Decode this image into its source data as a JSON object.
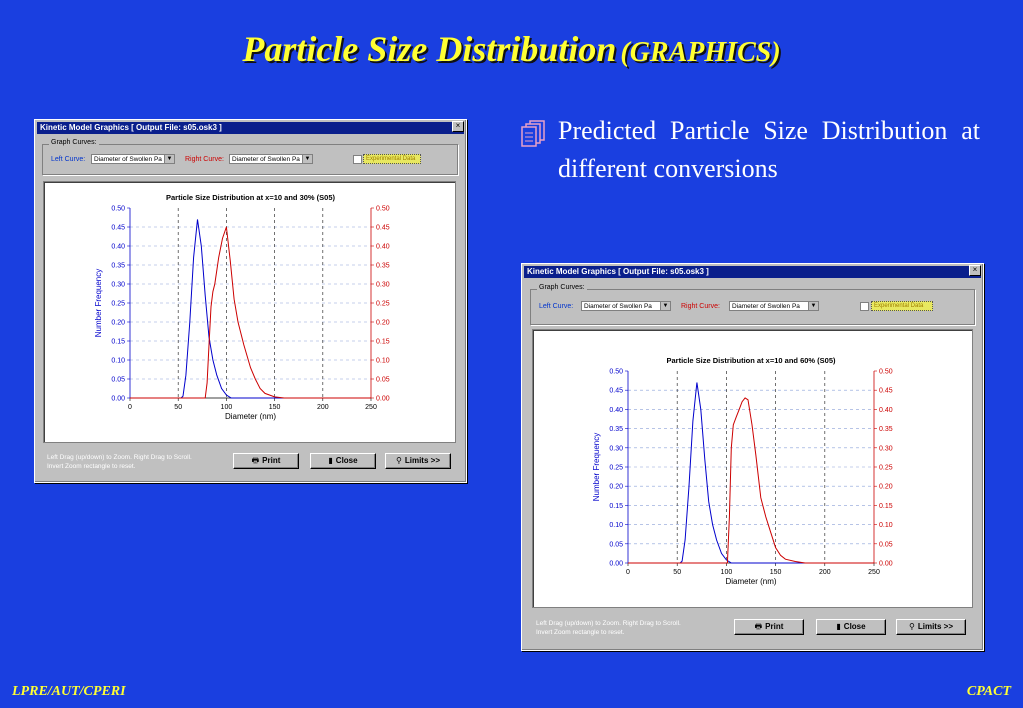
{
  "slide": {
    "title_main": "Particle Size Distribution",
    "title_sub": "(GRAPHICS)",
    "bullet": "Predicted Particle Size Distribution at different conversions",
    "footer_left": "LPRE/AUT/CPERI",
    "footer_right": "CPACT"
  },
  "windows": [
    {
      "title": "Kinetic Model Graphics [ Output File: s05.osk3 ]",
      "close_glyph": "×",
      "group_label": "Graph Curves:",
      "left_curve_label": "Left Curve:",
      "left_curve_value": "Diameter of Swollen Pa",
      "right_curve_label": "Right Curve:",
      "right_curve_value": "Diameter of Swollen Pa",
      "checkbox_label": "Experimental Data",
      "hint_line1": "Left Drag (up/down) to Zoom. Right Drag to Scroll.",
      "hint_line2": "Invert Zoom rectangle to reset.",
      "print_label": "Print",
      "close_label": "Close",
      "limits_label": "Limits >>"
    },
    {
      "title": "Kinetic Model Graphics [ Output File: s05.osk3 ]",
      "close_glyph": "×",
      "group_label": "Graph Curves:",
      "left_curve_label": "Left Curve:",
      "left_curve_value": "Diameter of Swollen Pa",
      "right_curve_label": "Right Curve:",
      "right_curve_value": "Diameter of Swollen Pa",
      "checkbox_label": "Experimental Data",
      "hint_line1": "Left Drag (up/down) to Zoom. Right Drag to Scroll.",
      "hint_line2": "Invert Zoom rectangle to reset.",
      "print_label": "Print",
      "close_label": "Close",
      "limits_label": "Limits >>"
    }
  ],
  "icons": {
    "bullet": "document-stack-icon",
    "print": "printer-icon",
    "close": "door-icon",
    "limits": "magnifier-icon"
  },
  "colors": {
    "background": "#1a3fe0",
    "title": "#ffff33",
    "left_series": "#0000cc",
    "right_series": "#cc0000"
  },
  "chart_data": [
    {
      "type": "line",
      "title": "Particle Size Distribution at x=10 and 30% (S05)",
      "xlabel": "Diameter (nm)",
      "ylabel": "Number Frequency",
      "xlim": [
        0,
        250
      ],
      "ylim": [
        0,
        0.5
      ],
      "x_ticks": [
        "0",
        "50",
        "100",
        "150",
        "200",
        "250"
      ],
      "y_ticks": [
        "0.00",
        "0.05",
        "0.10",
        "0.15",
        "0.20",
        "0.25",
        "0.30",
        "0.35",
        "0.40",
        "0.45",
        "0.50"
      ],
      "grid": true,
      "series": [
        {
          "color": "#0000cc",
          "x": [
            0,
            53,
            55,
            58,
            62,
            66,
            70,
            74,
            78,
            82,
            86,
            90,
            95,
            100,
            105,
            250
          ],
          "y": [
            0,
            0,
            0.005,
            0.06,
            0.2,
            0.37,
            0.47,
            0.4,
            0.27,
            0.16,
            0.1,
            0.06,
            0.025,
            0.008,
            0,
            0
          ]
        },
        {
          "color": "#cc0000",
          "x": [
            0,
            78,
            80,
            82,
            84,
            86,
            88,
            92,
            96,
            100,
            104,
            108,
            112,
            118,
            125,
            130,
            135,
            140,
            150,
            160,
            250
          ],
          "y": [
            0,
            0,
            0.04,
            0.14,
            0.24,
            0.28,
            0.3,
            0.37,
            0.42,
            0.45,
            0.36,
            0.26,
            0.2,
            0.14,
            0.08,
            0.05,
            0.025,
            0.012,
            0.003,
            0,
            0
          ]
        }
      ]
    },
    {
      "type": "line",
      "title": "Particle Size Distribution at x=10 and 60% (S05)",
      "xlabel": "Diameter (nm)",
      "ylabel": "Number Frequency",
      "xlim": [
        0,
        250
      ],
      "ylim": [
        0,
        0.5
      ],
      "x_ticks": [
        "0",
        "50",
        "100",
        "150",
        "200",
        "250"
      ],
      "y_ticks": [
        "0.00",
        "0.05",
        "0.10",
        "0.15",
        "0.20",
        "0.25",
        "0.30",
        "0.35",
        "0.40",
        "0.45",
        "0.50"
      ],
      "grid": true,
      "series": [
        {
          "color": "#0000cc",
          "x": [
            0,
            53,
            55,
            58,
            62,
            66,
            70,
            74,
            78,
            82,
            86,
            90,
            95,
            100,
            105,
            250
          ],
          "y": [
            0,
            0,
            0.005,
            0.06,
            0.2,
            0.37,
            0.47,
            0.4,
            0.27,
            0.16,
            0.1,
            0.06,
            0.025,
            0.008,
            0,
            0
          ]
        },
        {
          "color": "#cc0000",
          "x": [
            0,
            101,
            103,
            105,
            107,
            110,
            113,
            116,
            119,
            122,
            126,
            130,
            135,
            140,
            145,
            150,
            155,
            160,
            170,
            180,
            250
          ],
          "y": [
            0,
            0,
            0.12,
            0.3,
            0.36,
            0.38,
            0.4,
            0.42,
            0.43,
            0.425,
            0.36,
            0.28,
            0.17,
            0.12,
            0.08,
            0.04,
            0.02,
            0.01,
            0.004,
            0,
            0
          ]
        }
      ]
    }
  ]
}
